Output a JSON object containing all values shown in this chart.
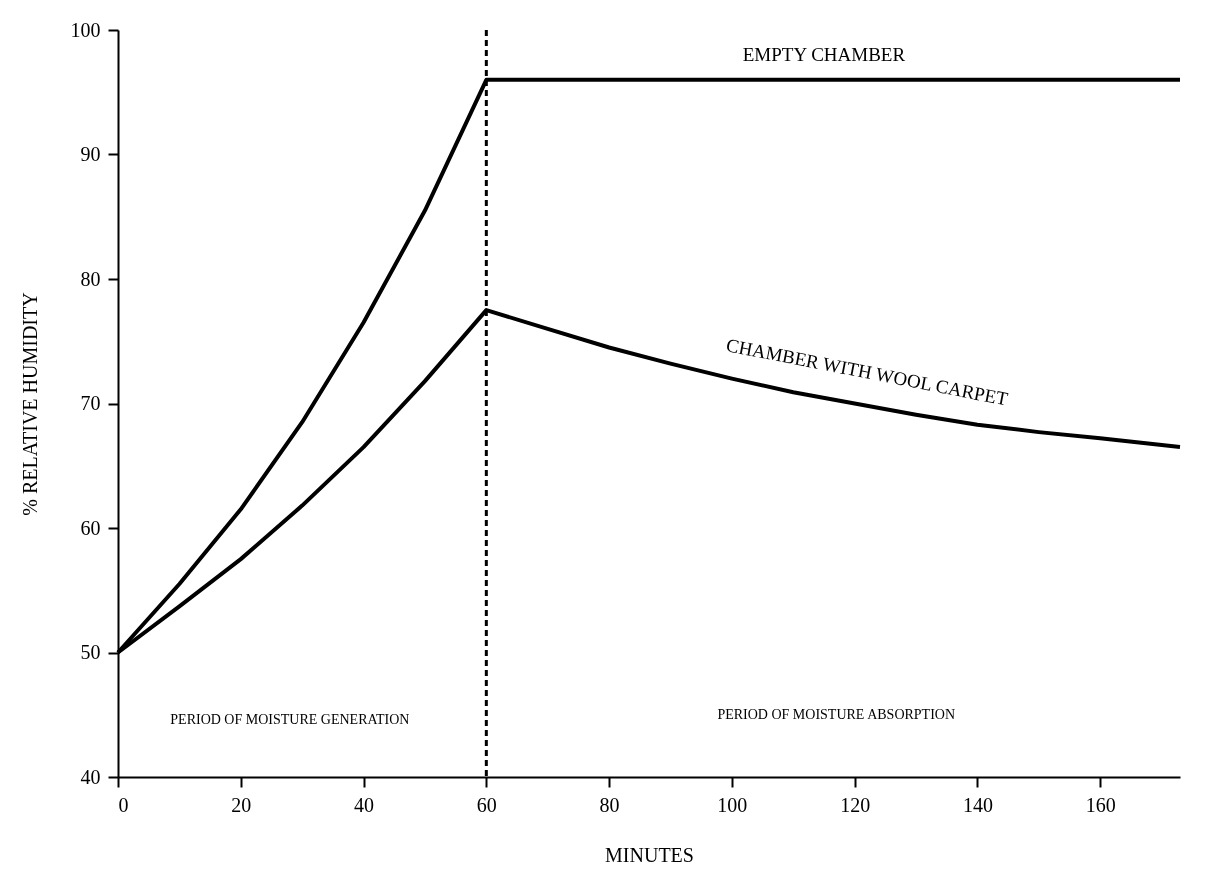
{
  "chart_data": {
    "type": "line",
    "xlabel": "MINUTES",
    "ylabel": "% RELATIVE HUMIDITY",
    "xlim": [
      0,
      173
    ],
    "xticks": [
      0,
      20,
      40,
      60,
      80,
      100,
      120,
      140,
      160
    ],
    "ylim": [
      40,
      100
    ],
    "yticks": [
      40,
      50,
      60,
      70,
      80,
      90,
      100
    ],
    "grid": false,
    "marker": "none",
    "line_style": "solid",
    "series": [
      {
        "name": "EMPTY CHAMBER",
        "color": "#000000",
        "x": [
          0,
          10,
          20,
          30,
          40,
          50,
          60,
          173
        ],
        "values": [
          50,
          55.5,
          61.5,
          68.5,
          76.5,
          85.5,
          96,
          96
        ]
      },
      {
        "name": "CHAMBER WITH WOOL CARPET",
        "color": "#000000",
        "x": [
          0,
          10,
          20,
          30,
          40,
          50,
          60,
          70,
          80,
          90,
          100,
          110,
          120,
          130,
          140,
          150,
          160,
          173
        ],
        "values": [
          50,
          53.7,
          57.5,
          61.8,
          66.5,
          71.8,
          77.5,
          76,
          74.5,
          73.2,
          72,
          70.9,
          70,
          69.1,
          68.3,
          67.7,
          67.2,
          66.5
        ]
      }
    ],
    "ref_lines": [
      {
        "axis": "x",
        "value": 60,
        "line_style": "dashed",
        "color": "#000000"
      }
    ],
    "annotations": [
      "PERIOD OF MOISTURE GENERATION",
      "PERIOD OF MOISTURE ABSORPTION"
    ]
  }
}
